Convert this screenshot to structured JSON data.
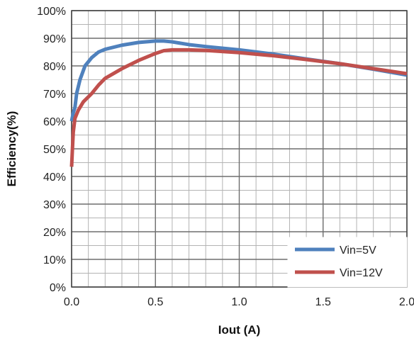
{
  "chart_data": {
    "type": "line",
    "title": "",
    "xlabel": "Iout (A)",
    "ylabel": "Efficiency(%)",
    "xlim": [
      0,
      2.0
    ],
    "ylim": [
      0,
      100
    ],
    "x_ticks": [
      0,
      0.5,
      1.0,
      1.5,
      2.0
    ],
    "x_tick_labels": [
      "0.0",
      "0.5",
      "1.0",
      "1.5",
      "2.0"
    ],
    "y_ticks": [
      0,
      10,
      20,
      30,
      40,
      50,
      60,
      70,
      80,
      90,
      100
    ],
    "y_tick_labels": [
      "0%",
      "10%",
      "20%",
      "30%",
      "40%",
      "50%",
      "60%",
      "70%",
      "80%",
      "90%",
      "100%"
    ],
    "grid": true,
    "minor_grid_x_step": 0.1,
    "minor_grid_y_step": 5,
    "legend_position": "bottom-right",
    "series": [
      {
        "name": "Vin=5V",
        "color": "#4f81bd",
        "points": [
          [
            0.0,
            60
          ],
          [
            0.01,
            63
          ],
          [
            0.02,
            65
          ],
          [
            0.03,
            70
          ],
          [
            0.05,
            75
          ],
          [
            0.08,
            80
          ],
          [
            0.12,
            83
          ],
          [
            0.16,
            85
          ],
          [
            0.2,
            86
          ],
          [
            0.3,
            87.5
          ],
          [
            0.4,
            88.5
          ],
          [
            0.5,
            89
          ],
          [
            0.55,
            89
          ],
          [
            0.6,
            88.7
          ],
          [
            0.7,
            87.7
          ],
          [
            0.8,
            87
          ],
          [
            1.0,
            85.8
          ],
          [
            1.2,
            84.3
          ],
          [
            1.4,
            82.5
          ],
          [
            1.6,
            80.8
          ],
          [
            1.8,
            78.8
          ],
          [
            2.0,
            76.7
          ]
        ]
      },
      {
        "name": "Vin=12V",
        "color": "#c0504d",
        "points": [
          [
            0.0,
            43.5
          ],
          [
            0.005,
            50
          ],
          [
            0.01,
            56
          ],
          [
            0.02,
            61
          ],
          [
            0.04,
            64
          ],
          [
            0.07,
            67
          ],
          [
            0.12,
            70
          ],
          [
            0.16,
            73
          ],
          [
            0.2,
            75.5
          ],
          [
            0.3,
            79
          ],
          [
            0.4,
            82
          ],
          [
            0.5,
            84.5
          ],
          [
            0.55,
            85.5
          ],
          [
            0.6,
            85.8
          ],
          [
            0.7,
            85.8
          ],
          [
            0.8,
            85.6
          ],
          [
            1.0,
            84.8
          ],
          [
            1.2,
            83.7
          ],
          [
            1.4,
            82.3
          ],
          [
            1.6,
            80.8
          ],
          [
            1.8,
            79
          ],
          [
            2.0,
            77.2
          ]
        ]
      }
    ]
  }
}
